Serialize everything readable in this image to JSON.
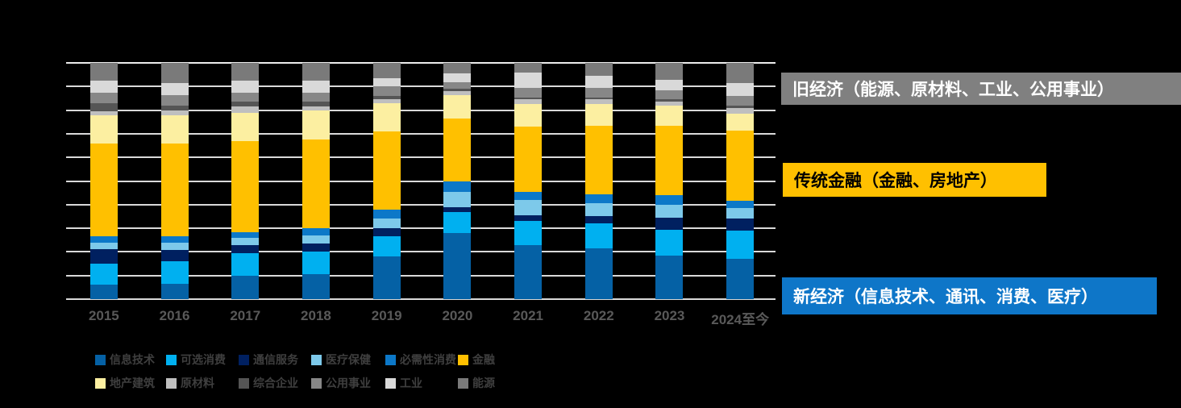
{
  "chart_data": {
    "type": "bar",
    "stacked": true,
    "stack_total": 100,
    "unit": "%",
    "grid": "horizontal",
    "legend_position": "bottom",
    "ylim": [
      0,
      100
    ],
    "y_ticks_top_to_bottom": [
      "100%",
      "90%",
      "80%",
      "70%",
      "60%",
      "50%",
      "40%",
      "30%",
      "20%",
      "10%",
      "0%"
    ],
    "categories": [
      "2015",
      "2016",
      "2017",
      "2018",
      "2019",
      "2020",
      "2021",
      "2022",
      "2023",
      "2024至今"
    ],
    "series": [
      {
        "name": "信息技术",
        "color": "#0561A5",
        "values": [
          6,
          6.5,
          10,
          10.5,
          18,
          28,
          23,
          21.5,
          18.5,
          17
        ]
      },
      {
        "name": "可选消费",
        "color": "#00B0F0",
        "values": [
          9,
          9.5,
          9.5,
          9.5,
          8.5,
          9,
          10,
          10.5,
          11,
          12
        ]
      },
      {
        "name": "通信服务",
        "color": "#002060",
        "values": [
          6,
          5,
          3.5,
          3.5,
          3.5,
          2,
          2.5,
          3,
          5,
          5
        ]
      },
      {
        "name": "医疗保健",
        "color": "#7DC9EA",
        "values": [
          3,
          3,
          3,
          3.5,
          4,
          6.5,
          6.5,
          5.5,
          5.5,
          4.5
        ]
      },
      {
        "name": "必需性消费",
        "color": "#0C78C8",
        "values": [
          2.5,
          2.5,
          2.5,
          3,
          4,
          4.5,
          3.5,
          4,
          4,
          3
        ]
      },
      {
        "name": "金融",
        "color": "#FFC000",
        "values": [
          39.5,
          39.5,
          38.5,
          37.5,
          33,
          26.5,
          27.5,
          29,
          29.5,
          30
        ]
      },
      {
        "name": "地产建筑",
        "color": "#FCEFA1",
        "values": [
          12,
          12,
          12,
          12.5,
          12,
          10,
          9.5,
          9,
          8.5,
          7
        ]
      },
      {
        "name": "原材料",
        "color": "#BFBFBF",
        "values": [
          1.5,
          2,
          2.5,
          1.5,
          1.5,
          1.5,
          2,
          2,
          1.5,
          2.5
        ]
      },
      {
        "name": "综合企业",
        "color": "#555555",
        "values": [
          3.5,
          2,
          2,
          2,
          1.5,
          1,
          1,
          1,
          1,
          1
        ]
      },
      {
        "name": "公用事业",
        "color": "#878787",
        "values": [
          4.5,
          4.5,
          4,
          4,
          4,
          3,
          4,
          4,
          4,
          4
        ]
      },
      {
        "name": "工业",
        "color": "#D9D9D9",
        "values": [
          5,
          5,
          5,
          5,
          3.5,
          3.5,
          6.5,
          5,
          4.5,
          5.5
        ]
      },
      {
        "name": "能源",
        "color": "#7A7A7A",
        "values": [
          7.5,
          8.5,
          7.5,
          7.5,
          6.5,
          4.5,
          4,
          5.5,
          7,
          8.5
        ]
      }
    ]
  },
  "annotations": {
    "old_economy": {
      "label": "旧经济（能源、原材料、工业、公用事业）",
      "bg": "#808080",
      "text_color": "#FFFFFF"
    },
    "traditional_finance": {
      "label": "传统金融（金融、房地产）",
      "bg": "#FFC000",
      "text_color": "#000000"
    },
    "new_economy": {
      "label": "新经济（信息技术、通讯、消费、医疗）",
      "bg": "#0E76C8",
      "text_color": "#FFFFFF"
    }
  },
  "colors": {
    "background": "#000000",
    "axis_label": "#595959",
    "gridline": "#D9D9D9",
    "legend_text": "#3F3F3F"
  }
}
